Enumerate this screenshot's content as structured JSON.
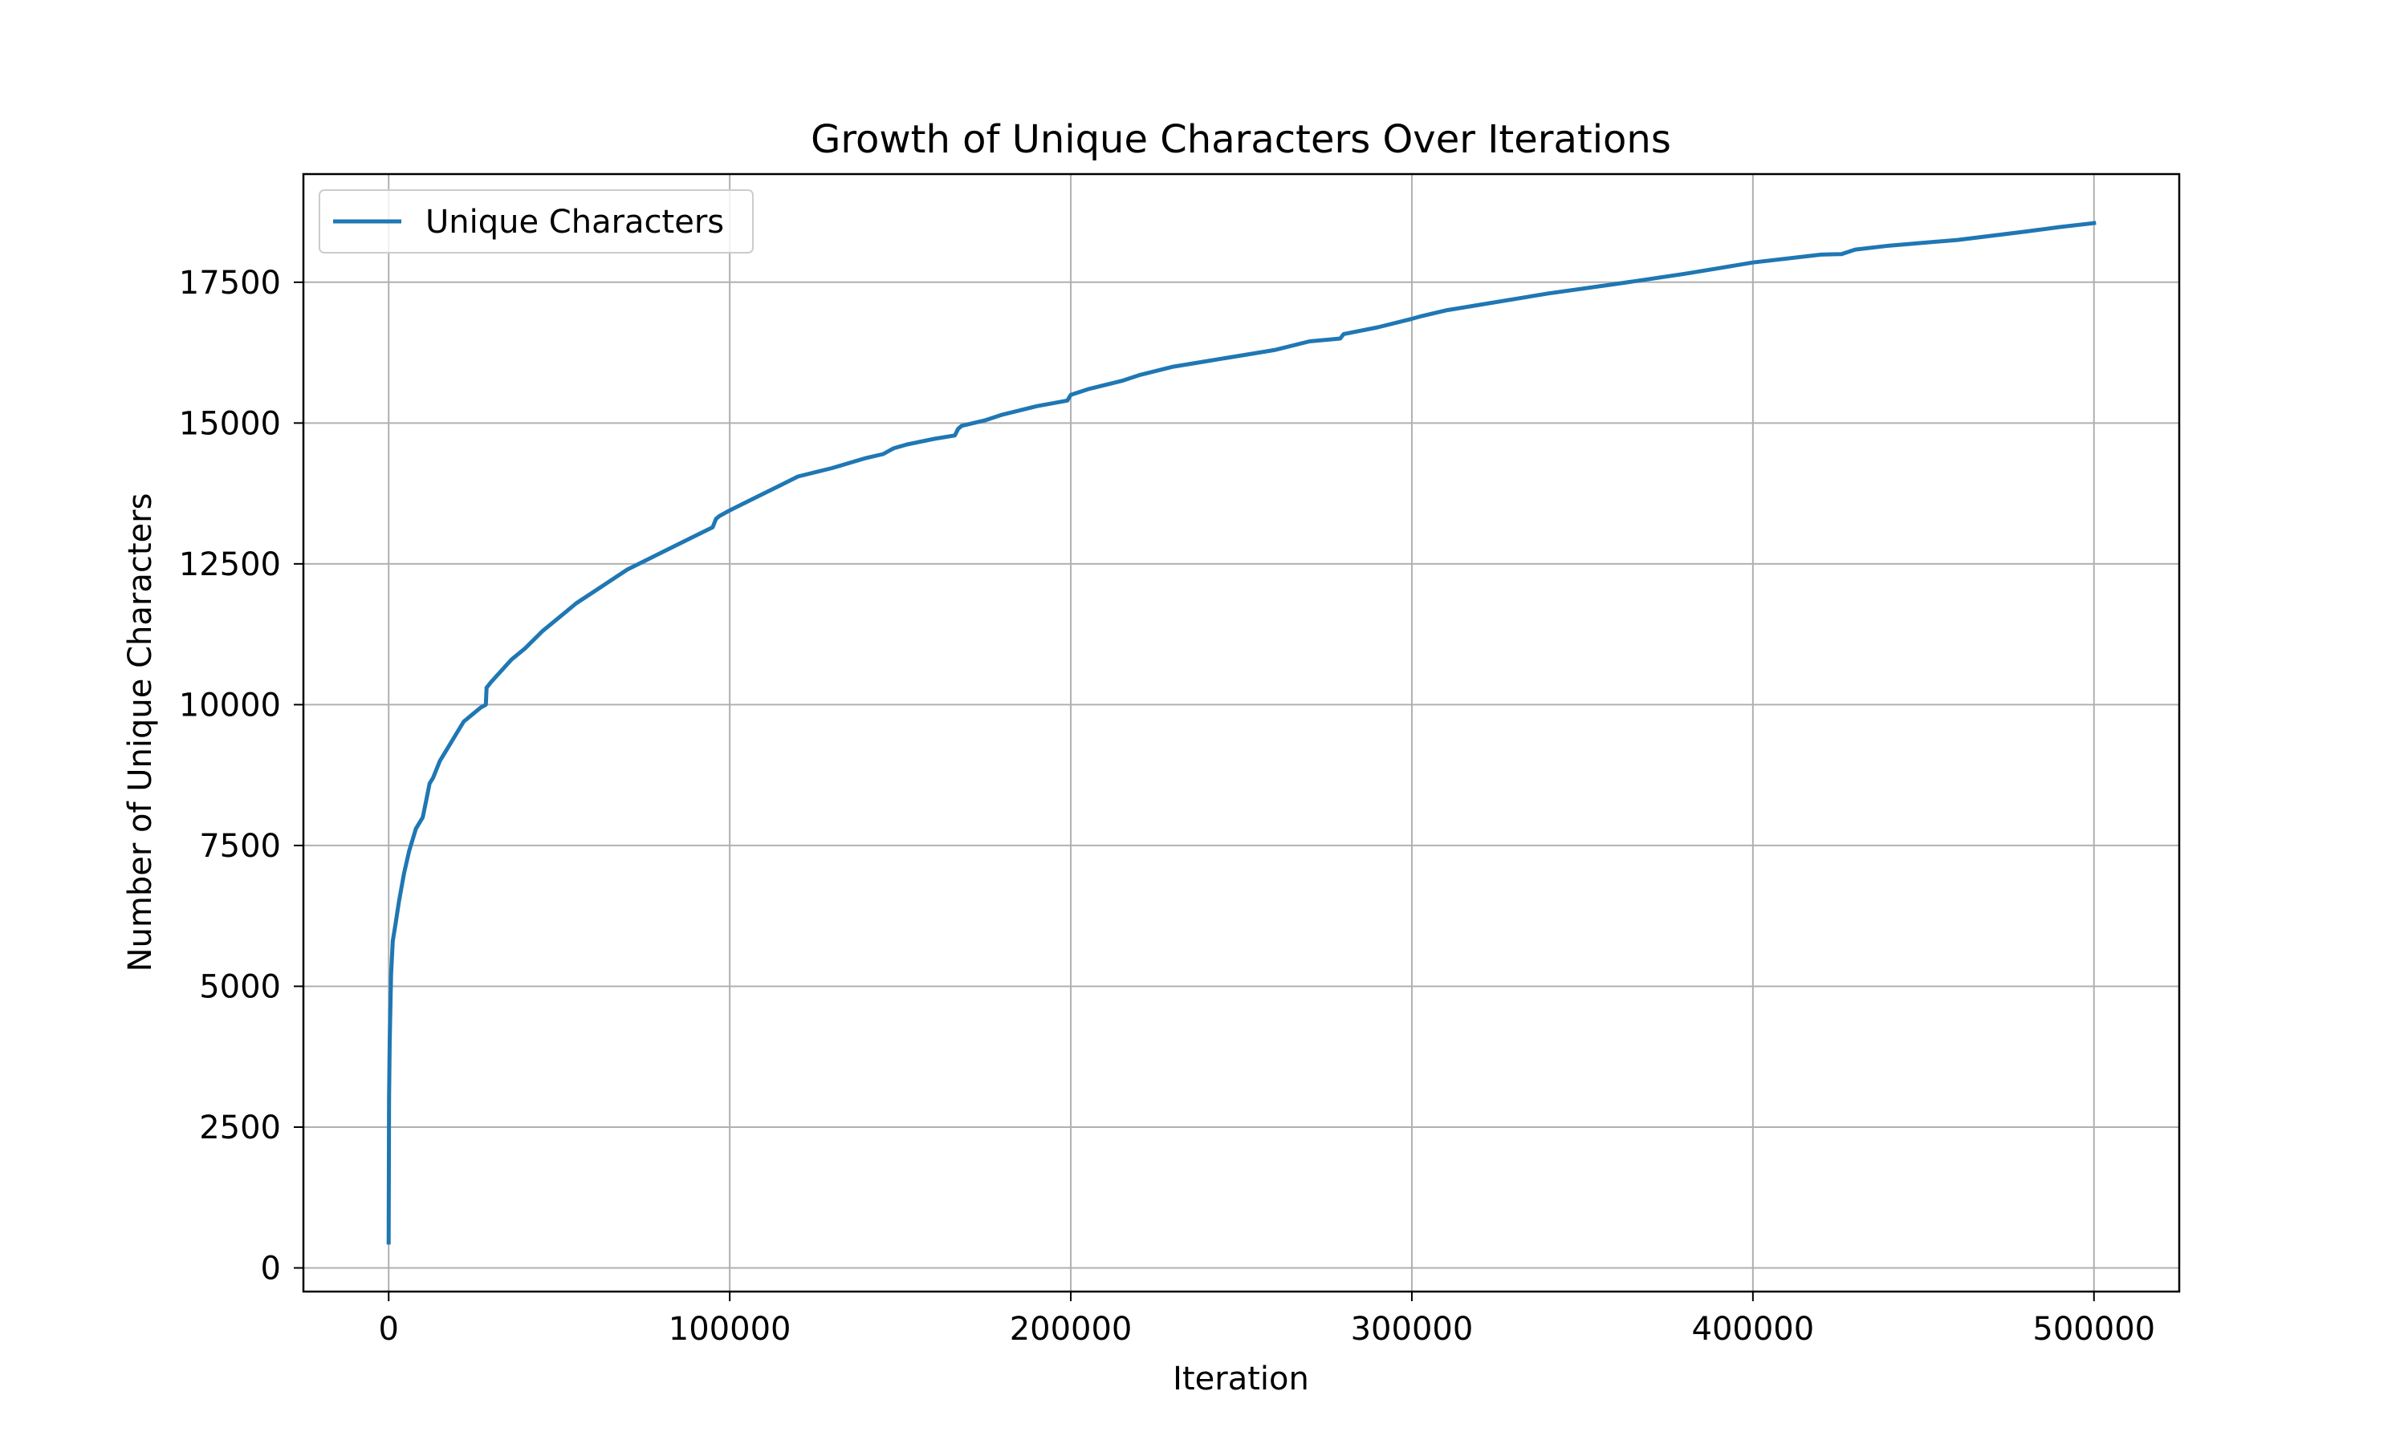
{
  "chart_data": {
    "type": "line",
    "title": "Growth of Unique Characters Over Iterations",
    "xlabel": "Iteration",
    "ylabel": "Number of Unique Characters",
    "xlim": [
      -25000,
      525000
    ],
    "ylim": [
      -420,
      19420
    ],
    "x_ticks": [
      0,
      100000,
      200000,
      300000,
      400000,
      500000
    ],
    "y_ticks": [
      0,
      2500,
      5000,
      7500,
      10000,
      12500,
      15000,
      17500
    ],
    "grid": true,
    "legend_position": "upper-left",
    "series": [
      {
        "name": "Unique Characters",
        "color": "#1f77b4",
        "x": [
          0,
          100,
          300,
          700,
          1200,
          2000,
          3000,
          4500,
          6000,
          8000,
          10000,
          11000,
          12000,
          13000,
          15000,
          17000,
          19000,
          20000,
          22000,
          25000,
          27000,
          28500,
          28700,
          30000,
          33000,
          36000,
          40000,
          45000,
          50000,
          55000,
          60000,
          65000,
          70000,
          75000,
          80000,
          85000,
          90000,
          95000,
          96000,
          97000,
          100000,
          105000,
          110000,
          115000,
          120000,
          130000,
          140000,
          145000,
          148000,
          152000,
          160000,
          166000,
          167000,
          168000,
          175000,
          180000,
          190000,
          199000,
          200000,
          205000,
          215000,
          220000,
          230000,
          240000,
          250000,
          260000,
          270000,
          279000,
          280000,
          290000,
          300000,
          303000,
          310000,
          320000,
          340000,
          360000,
          380000,
          390000,
          400000,
          420000,
          426000,
          430000,
          440000,
          460000,
          480000,
          490000,
          500000
        ],
        "y": [
          450,
          3000,
          4000,
          5200,
          5800,
          6100,
          6500,
          7000,
          7400,
          7800,
          8000,
          8300,
          8600,
          8700,
          9000,
          9200,
          9400,
          9500,
          9700,
          9850,
          9950,
          10000,
          10300,
          10400,
          10600,
          10800,
          11000,
          11300,
          11550,
          11800,
          12000,
          12200,
          12400,
          12550,
          12700,
          12850,
          13000,
          13150,
          13300,
          13350,
          13450,
          13600,
          13750,
          13900,
          14050,
          14200,
          14380,
          14450,
          14550,
          14620,
          14720,
          14780,
          14900,
          14950,
          15050,
          15150,
          15300,
          15400,
          15500,
          15600,
          15750,
          15850,
          16000,
          16100,
          16200,
          16300,
          16450,
          16500,
          16580,
          16700,
          16850,
          16900,
          17000,
          17100,
          17300,
          17470,
          17650,
          17750,
          17850,
          17990,
          18000,
          18080,
          18150,
          18250,
          18400,
          18480,
          18550
        ]
      }
    ]
  }
}
